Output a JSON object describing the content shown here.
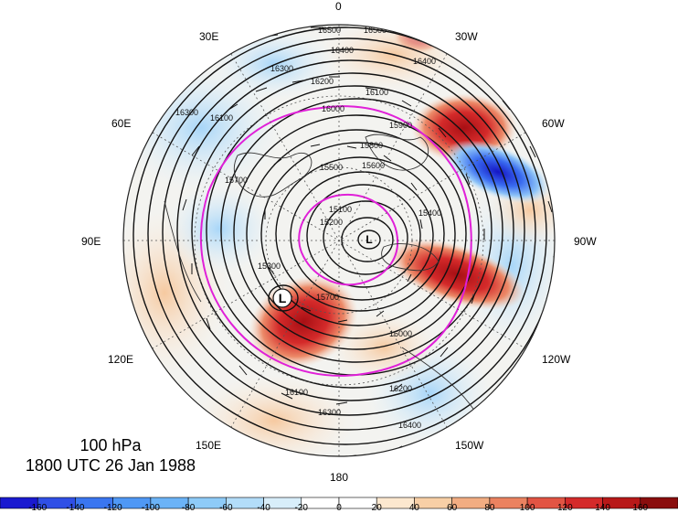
{
  "title": {
    "level": "100 hPa",
    "datetime": "1800 UTC 26 Jan 1988"
  },
  "longitude_labels": [
    "0",
    "30W",
    "60W",
    "90W",
    "120W",
    "150W",
    "180",
    "150E",
    "120E",
    "90E",
    "60E",
    "30E"
  ],
  "low_center_label": "L",
  "contour_labels": [
    "16500",
    "16400",
    "16300",
    "16200",
    "16100",
    "16000",
    "15900",
    "15800",
    "15700",
    "15600",
    "15500",
    "15400",
    "15300",
    "15200",
    "15100"
  ],
  "colorbar": {
    "ticks": [
      "-160",
      "-140",
      "-120",
      "-100",
      "-80",
      "-60",
      "-40",
      "-20",
      "0",
      "20",
      "40",
      "60",
      "80",
      "100",
      "120",
      "140",
      "160"
    ],
    "colors": [
      "#1a1ad0",
      "#2f4fe6",
      "#3a76f0",
      "#4f98f5",
      "#6bb3f7",
      "#8ecbf8",
      "#b3ddf9",
      "#d8eefa",
      "#ffffff",
      "#fce8cf",
      "#f8cfa6",
      "#f2ad82",
      "#eb8260",
      "#e25443",
      "#d42a2a",
      "#b81818",
      "#8a0d0d"
    ]
  },
  "colors": {
    "contour": "#111111",
    "jet_contour": "#e020d8",
    "positive": "#d42a2a",
    "negative": "#1a1ad0"
  }
}
